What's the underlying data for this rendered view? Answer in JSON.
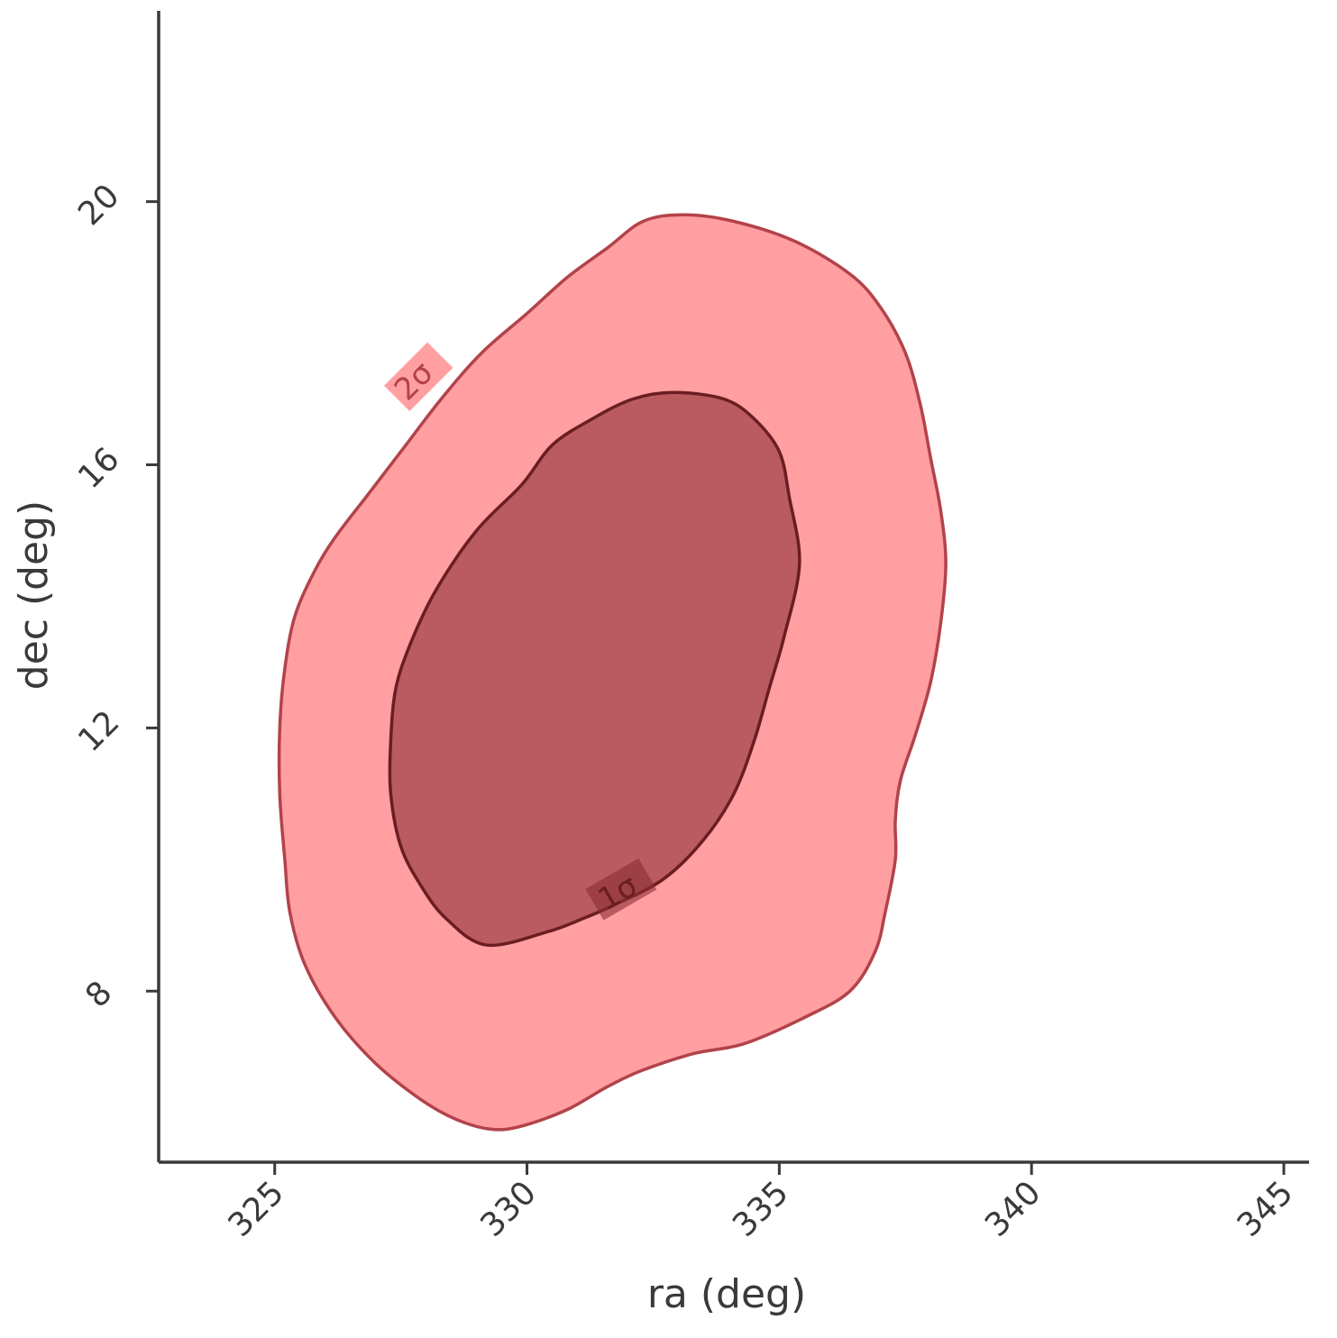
{
  "chart_data": {
    "type": "contour",
    "title": "",
    "xlabel": "ra (deg)",
    "ylabel": "dec (deg)",
    "xlim": [
      322.7,
      345.5
    ],
    "ylim": [
      5.4,
      22.9
    ],
    "xticks": [
      325,
      330,
      335,
      340,
      345
    ],
    "yticks": [
      8,
      12,
      16,
      20
    ],
    "xtick_labels": [
      "325",
      "330",
      "335",
      "340",
      "345"
    ],
    "ytick_labels": [
      "8",
      "12",
      "16",
      "20"
    ],
    "grid": false,
    "legend": "none",
    "series": [
      {
        "label": "2σ",
        "fill": "#ff6b6f",
        "fill_opacity": 0.65,
        "edge": "#b3424a",
        "label_color": "#b3424a",
        "label_pos": [
          327.9,
          17.3
        ],
        "label_angle": -45,
        "points": [
          [
            329.3,
            5.9
          ],
          [
            329.9,
            5.95
          ],
          [
            330.8,
            6.2
          ],
          [
            331.6,
            6.55
          ],
          [
            332.3,
            6.8
          ],
          [
            333.3,
            7.05
          ],
          [
            334.3,
            7.2
          ],
          [
            335.5,
            7.6
          ],
          [
            336.4,
            8.0
          ],
          [
            336.9,
            8.6
          ],
          [
            337.1,
            9.2
          ],
          [
            337.3,
            10.0
          ],
          [
            337.3,
            10.6
          ],
          [
            337.4,
            11.2
          ],
          [
            337.7,
            11.9
          ],
          [
            338.0,
            12.7
          ],
          [
            338.2,
            13.6
          ],
          [
            338.3,
            14.5
          ],
          [
            338.2,
            15.3
          ],
          [
            338.0,
            16.1
          ],
          [
            337.8,
            16.9
          ],
          [
            337.5,
            17.7
          ],
          [
            337.0,
            18.4
          ],
          [
            336.4,
            18.9
          ],
          [
            335.3,
            19.4
          ],
          [
            334.1,
            19.7
          ],
          [
            333.1,
            19.8
          ],
          [
            332.3,
            19.7
          ],
          [
            331.6,
            19.3
          ],
          [
            330.8,
            18.85
          ],
          [
            330.0,
            18.3
          ],
          [
            329.1,
            17.7
          ],
          [
            328.3,
            17.0
          ],
          [
            327.5,
            16.2
          ],
          [
            326.8,
            15.5
          ],
          [
            326.2,
            14.9
          ],
          [
            325.8,
            14.4
          ],
          [
            325.4,
            13.7
          ],
          [
            325.2,
            12.9
          ],
          [
            325.1,
            12.0
          ],
          [
            325.1,
            11.0
          ],
          [
            325.2,
            10.0
          ],
          [
            325.3,
            9.2
          ],
          [
            325.6,
            8.4
          ],
          [
            326.2,
            7.6
          ],
          [
            327.0,
            6.9
          ],
          [
            327.9,
            6.35
          ],
          [
            328.6,
            6.05
          ]
        ]
      },
      {
        "label": "1σ",
        "fill": "#8b2f33",
        "fill_opacity": 0.6,
        "edge": "#6b1d22",
        "label_color": "#6b1d22",
        "label_pos": [
          331.9,
          9.5
        ],
        "label_angle": -30,
        "points": [
          [
            329.2,
            8.7
          ],
          [
            330.4,
            8.9
          ],
          [
            331.1,
            9.1
          ],
          [
            331.7,
            9.3
          ],
          [
            332.7,
            9.7
          ],
          [
            333.5,
            10.3
          ],
          [
            334.1,
            11.0
          ],
          [
            334.5,
            11.8
          ],
          [
            334.8,
            12.6
          ],
          [
            335.1,
            13.4
          ],
          [
            335.4,
            14.5
          ],
          [
            335.2,
            15.5
          ],
          [
            335.0,
            16.2
          ],
          [
            334.5,
            16.7
          ],
          [
            333.9,
            17.0
          ],
          [
            332.9,
            17.1
          ],
          [
            332.1,
            17.0
          ],
          [
            331.3,
            16.7
          ],
          [
            330.5,
            16.3
          ],
          [
            329.9,
            15.7
          ],
          [
            329.0,
            15.0
          ],
          [
            328.2,
            14.1
          ],
          [
            327.7,
            13.3
          ],
          [
            327.4,
            12.6
          ],
          [
            327.3,
            11.8
          ],
          [
            327.3,
            11.0
          ],
          [
            327.5,
            10.2
          ],
          [
            327.9,
            9.6
          ],
          [
            328.4,
            9.1
          ]
        ]
      }
    ]
  }
}
